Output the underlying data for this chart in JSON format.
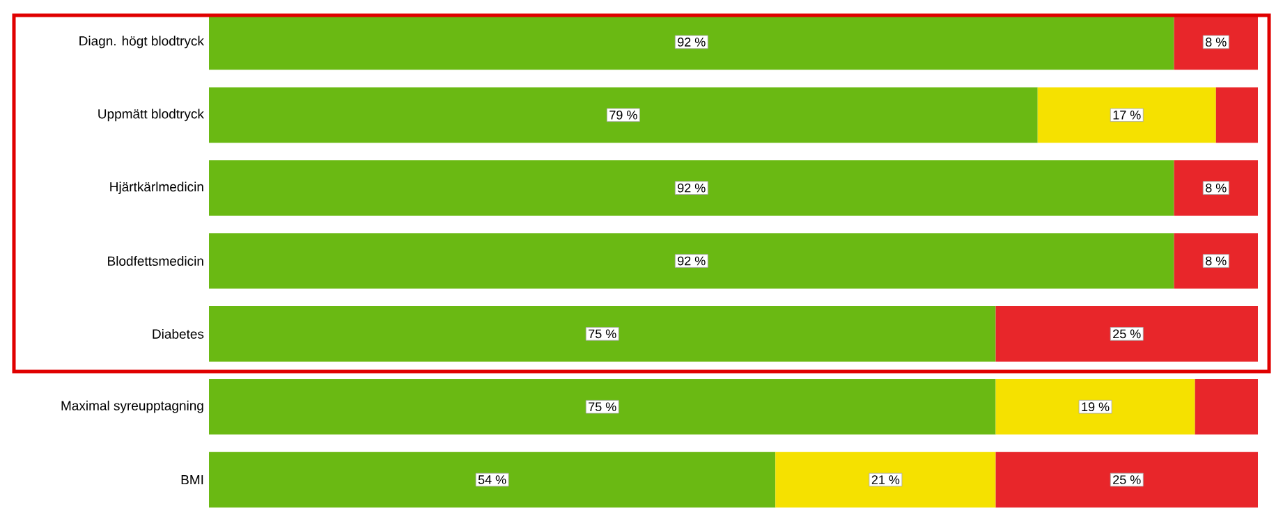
{
  "chart_data": {
    "type": "bar",
    "orientation": "horizontal",
    "stacked": true,
    "categories": [
      "Diagn. högt blodtryck",
      "Uppmätt blodtryck",
      "Hjärtkärlmedicin",
      "Blodfettsmedicin",
      "Diabetes",
      "Maximal syreupptagning",
      "BMI"
    ],
    "series": [
      {
        "color": "#6ab913",
        "values": [
          92,
          79,
          92,
          92,
          75,
          75,
          54
        ],
        "value_labels": [
          "92 %",
          "79 %",
          "92 %",
          "92 %",
          "75 %",
          "75 %",
          "54 %"
        ]
      },
      {
        "color": "#f5e100",
        "values": [
          null,
          17,
          null,
          null,
          null,
          19,
          21
        ],
        "value_labels": [
          null,
          "17 %",
          null,
          null,
          null,
          "19 %",
          "21 %"
        ]
      },
      {
        "color": "#e8262a",
        "values": [
          8,
          4,
          8,
          8,
          25,
          6,
          25
        ],
        "value_labels": [
          "8 %",
          null,
          "8 %",
          "8 %",
          "25 %",
          null,
          "25 %"
        ]
      }
    ],
    "xlim": [
      0,
      100
    ],
    "tick_labels": "y"
  }
}
